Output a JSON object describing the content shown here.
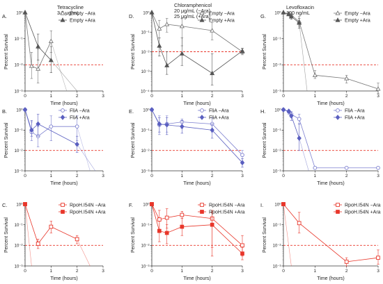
{
  "figure": {
    "y_axis_title": "Percent Survival",
    "x_axis_title": "Time (hours)",
    "threshold_color": "#e8362a",
    "colors": {
      "empty": "#777777",
      "flia": "#7c7fcf",
      "rpoh": "#e8362a"
    }
  },
  "column_headers": [
    {
      "lines": [
        "Tetracycline",
        "3.5 μg/mL"
      ]
    },
    {
      "lines": [
        "Chloramphenicol",
        "20 μg/mL (−Ara)",
        "25 μg/mL (+Ara)"
      ]
    },
    {
      "lines": [
        "Levofloxacin",
        "100 ng/mL"
      ]
    }
  ],
  "chart_data": [
    {
      "panel": "A.",
      "type": "line",
      "log_y": true,
      "xlim": [
        0,
        3
      ],
      "xticks": [
        "0",
        "1",
        "2",
        "3"
      ],
      "ylim": [
        -3,
        0
      ],
      "yticks": [
        "10⁰",
        "10⁻¹",
        "10⁻²",
        "10⁻³"
      ],
      "threshold": 0.01,
      "legend": "top-right",
      "series": [
        {
          "name": "Empty −Ara",
          "marker": "triangle-open",
          "color": "#777777",
          "x": [
            0,
            0.25,
            0.5,
            1
          ],
          "y": [
            1.0,
            0.009,
            0.007,
            0.08
          ],
          "err_hi": [
            1.0,
            0.03,
            0.04,
            0.2
          ],
          "err_lo": [
            1.0,
            0.003,
            0.002,
            0.03
          ],
          "tail_to": [
            1.6,
            -3
          ]
        },
        {
          "name": "Empty +Ara",
          "marker": "triangle",
          "color": "#555555",
          "x": [
            0,
            0.5,
            1
          ],
          "y": [
            1.0,
            0.05,
            0.015
          ],
          "err_hi": [
            1.0,
            0.15,
            0.05
          ],
          "err_lo": [
            1.0,
            0.015,
            0.005
          ],
          "tail_to": [
            2.0,
            -3
          ]
        }
      ]
    },
    {
      "panel": "D.",
      "type": "line",
      "log_y": true,
      "xlim": [
        0,
        3
      ],
      "xticks": [
        "0",
        "1",
        "2",
        "3"
      ],
      "ylim": [
        -4,
        0
      ],
      "yticks": [
        "10⁰",
        "10⁻¹",
        "10⁻²",
        "10⁻³",
        "10⁻⁴"
      ],
      "threshold": 0.01,
      "legend": "top-right",
      "series": [
        {
          "name": "Empty −Ara",
          "marker": "triangle-open",
          "color": "#777777",
          "x": [
            0,
            0.25,
            0.5,
            1,
            2,
            3
          ],
          "y": [
            1.0,
            0.15,
            0.25,
            0.2,
            0.12,
            0.01
          ],
          "err_hi": [
            1.0,
            0.4,
            0.5,
            0.5,
            0.3,
            0.015
          ],
          "err_lo": [
            1.0,
            0.05,
            0.1,
            0.02,
            0.04,
            0.007
          ]
        },
        {
          "name": "Empty +Ara",
          "marker": "triangle",
          "color": "#555555",
          "x": [
            0,
            0.25,
            0.5,
            1,
            2,
            3
          ],
          "y": [
            1.0,
            0.02,
            0.002,
            0.008,
            0.0008,
            0.011
          ],
          "err_hi": [
            1.0,
            0.05,
            0.01,
            0.05,
            0.008,
            0.015
          ],
          "err_lo": [
            1.0,
            0.006,
            0.0007,
            0.002,
            0.0002,
            0.008
          ]
        }
      ]
    },
    {
      "panel": "G.",
      "type": "line",
      "log_y": true,
      "xlim": [
        0,
        3
      ],
      "xticks": [
        "0",
        "1",
        "2",
        "3"
      ],
      "ylim": [
        -3,
        0
      ],
      "yticks": [
        "10⁰",
        "10⁻¹",
        "10⁻²",
        "10⁻³"
      ],
      "threshold": 0.01,
      "legend": "top-right",
      "series": [
        {
          "name": "Empty −Ara",
          "marker": "triangle-open",
          "color": "#777777",
          "x": [
            0,
            0.17,
            0.25,
            0.5,
            1,
            2,
            3
          ],
          "y": [
            1.0,
            0.9,
            0.8,
            0.45,
            0.004,
            0.003,
            0.0012
          ],
          "err_hi": [
            1.0,
            1.0,
            0.95,
            0.7,
            0.006,
            0.004,
            0.002
          ],
          "err_lo": [
            1.0,
            0.8,
            0.65,
            0.3,
            0.003,
            0.002,
            0.0008
          ]
        },
        {
          "name": "Empty +Ara",
          "marker": "triangle",
          "color": "#555555",
          "x": [
            0,
            0.17,
            0.25,
            0.5
          ],
          "y": [
            1.0,
            0.85,
            0.7,
            0.4
          ],
          "err_hi": [
            1.0,
            0.95,
            0.85,
            0.6
          ],
          "err_lo": [
            1.0,
            0.75,
            0.55,
            0.25
          ],
          "tail_to": [
            0.75,
            -3
          ]
        }
      ]
    },
    {
      "panel": "B.",
      "type": "line",
      "log_y": true,
      "xlim": [
        0,
        3
      ],
      "xticks": [
        "0",
        "1",
        "2",
        "3"
      ],
      "ylim": [
        -3,
        0
      ],
      "yticks": [
        "10⁰",
        "10⁻¹",
        "10⁻²",
        "10⁻³"
      ],
      "threshold": 0.01,
      "legend": "top-right",
      "series": [
        {
          "name": "FliA −Ara",
          "marker": "circle-open",
          "color": "#7c7fcf",
          "x": [
            0,
            0.25,
            0.5,
            1,
            2
          ],
          "y": [
            1.0,
            0.08,
            0.05,
            0.15,
            0.15
          ],
          "err_hi": [
            1.0,
            0.25,
            0.15,
            0.5,
            0.5
          ],
          "err_lo": [
            1.0,
            0.03,
            0.015,
            0.03,
            0.03
          ],
          "tail_to": [
            2.5,
            -3
          ]
        },
        {
          "name": "FliA +Ara",
          "marker": "diamond",
          "color": "#5a5fc0",
          "x": [
            0,
            0.25,
            0.5,
            2
          ],
          "y": [
            1.0,
            0.1,
            0.2,
            0.02
          ],
          "err_hi": [
            1.0,
            0.3,
            0.6,
            0.05
          ],
          "err_lo": [
            1.0,
            0.05,
            0.05,
            0.008
          ],
          "tail_to": [
            2.7,
            -3
          ]
        }
      ]
    },
    {
      "panel": "E.",
      "type": "line",
      "log_y": true,
      "xlim": [
        0,
        3
      ],
      "xticks": [
        "0",
        "1",
        "2",
        "3"
      ],
      "ylim": [
        -3,
        0
      ],
      "yticks": [
        "10⁰",
        "10⁻¹",
        "10⁻²",
        "10⁻³"
      ],
      "threshold": 0.01,
      "legend": "top-right",
      "series": [
        {
          "name": "FliA −Ara",
          "marker": "circle-open",
          "color": "#7c7fcf",
          "x": [
            0,
            0.25,
            0.5,
            1,
            2,
            3
          ],
          "y": [
            1.0,
            0.18,
            0.2,
            0.25,
            0.2,
            0.006
          ],
          "err_hi": [
            1.0,
            0.5,
            0.5,
            0.35,
            0.4,
            0.01
          ],
          "err_lo": [
            1.0,
            0.06,
            0.08,
            0.12,
            0.08,
            0.003
          ]
        },
        {
          "name": "FliA +Ara",
          "marker": "diamond",
          "color": "#5a5fc0",
          "x": [
            0,
            0.25,
            0.5,
            1,
            2,
            3
          ],
          "y": [
            1.0,
            0.2,
            0.18,
            0.15,
            0.1,
            0.0025
          ],
          "err_hi": [
            1.0,
            0.4,
            0.4,
            0.3,
            0.2,
            0.004
          ],
          "err_lo": [
            1.0,
            0.08,
            0.06,
            0.07,
            0.04,
            0.0015
          ]
        }
      ]
    },
    {
      "panel": "H.",
      "type": "line",
      "log_y": true,
      "xlim": [
        0,
        3
      ],
      "xticks": [
        "0",
        "1",
        "2",
        "3"
      ],
      "ylim": [
        -3,
        0
      ],
      "yticks": [
        "10⁰",
        "10⁻¹",
        "10⁻²",
        "10⁻³"
      ],
      "threshold": 0.01,
      "legend": "top-right",
      "series": [
        {
          "name": "FliA −Ara",
          "marker": "circle-open",
          "color": "#7c7fcf",
          "x": [
            0,
            0.17,
            0.25,
            0.5,
            1,
            2,
            3
          ],
          "y": [
            1.0,
            0.8,
            0.6,
            0.35,
            0.0014,
            0.0014,
            0.0014
          ],
          "err_hi": [
            1.0,
            0.95,
            0.8,
            0.6,
            0.0014,
            0.0014,
            0.0014
          ],
          "err_lo": [
            1.0,
            0.6,
            0.4,
            0.2,
            0.0014,
            0.0014,
            0.0014
          ]
        },
        {
          "name": "FliA +Ara",
          "marker": "diamond",
          "color": "#5a5fc0",
          "x": [
            0,
            0.17,
            0.25,
            0.5
          ],
          "y": [
            1.0,
            0.85,
            0.5,
            0.04
          ],
          "err_hi": [
            1.0,
            0.95,
            0.8,
            0.2
          ],
          "err_lo": [
            1.0,
            0.7,
            0.3,
            0.01
          ],
          "tail_to": [
            0.8,
            -3
          ]
        }
      ]
    },
    {
      "panel": "C.",
      "type": "line",
      "log_y": true,
      "xlim": [
        0,
        3
      ],
      "xticks": [
        "0",
        "1",
        "2",
        "3"
      ],
      "ylim": [
        -3,
        0
      ],
      "yticks": [
        "10⁰",
        "10⁻¹",
        "10⁻²",
        "10⁻³"
      ],
      "threshold": 0.01,
      "legend": "top-right",
      "series": [
        {
          "name": "RpoH.I54N −Ara",
          "marker": "square-open",
          "color": "#e8362a",
          "x": [
            0,
            0.5,
            1,
            2
          ],
          "y": [
            1.0,
            0.012,
            0.08,
            0.02
          ],
          "err_hi": [
            1.0,
            0.02,
            0.15,
            0.03
          ],
          "err_lo": [
            1.0,
            0.007,
            0.04,
            0.012
          ],
          "tail_to": [
            2.5,
            -3
          ]
        },
        {
          "name": "RpoH.I54N +Ara",
          "marker": "square",
          "color": "#e8362a",
          "x": [
            0
          ],
          "y": [
            1.0
          ],
          "err_hi": [
            1.0
          ],
          "err_lo": [
            1.0
          ],
          "tail_to": [
            0.25,
            -3
          ]
        }
      ]
    },
    {
      "panel": "F.",
      "type": "line",
      "log_y": true,
      "xlim": [
        0,
        3
      ],
      "xticks": [
        "0",
        "1",
        "2",
        "3"
      ],
      "ylim": [
        -3,
        0
      ],
      "yticks": [
        "10⁰",
        "10⁻¹",
        "10⁻²",
        "10⁻³"
      ],
      "threshold": 0.01,
      "legend": "top-right",
      "series": [
        {
          "name": "RpoH.I54N −Ara",
          "marker": "square-open",
          "color": "#e8362a",
          "x": [
            0,
            0.25,
            0.5,
            1,
            2,
            3
          ],
          "y": [
            1.0,
            0.18,
            0.22,
            0.3,
            0.2,
            0.01
          ],
          "err_hi": [
            1.0,
            0.5,
            0.6,
            0.45,
            0.5,
            0.03
          ],
          "err_lo": [
            1.0,
            0.06,
            0.07,
            0.2,
            0.003,
            0.003
          ]
        },
        {
          "name": "RpoH.I54N +Ara",
          "marker": "square",
          "color": "#e8362a",
          "x": [
            0,
            0.25,
            0.5,
            1,
            2,
            3
          ],
          "y": [
            1.0,
            0.05,
            0.04,
            0.08,
            0.1,
            0.004
          ],
          "err_hi": [
            1.0,
            0.15,
            0.1,
            0.2,
            0.4,
            0.008
          ],
          "err_lo": [
            1.0,
            0.015,
            0.012,
            0.03,
            0.008,
            0.002
          ]
        }
      ]
    },
    {
      "panel": "I.",
      "type": "line",
      "log_y": true,
      "xlim": [
        0,
        3
      ],
      "xticks": [
        "0",
        "1",
        "2",
        "3"
      ],
      "ylim": [
        -3,
        0
      ],
      "yticks": [
        "10⁰",
        "10⁻¹",
        "10⁻²",
        "10⁻³"
      ],
      "threshold": 0.01,
      "legend": "top-right",
      "series": [
        {
          "name": "RpoH.I54N −Ara",
          "marker": "square-open",
          "color": "#e8362a",
          "x": [
            0,
            0.5,
            2,
            3
          ],
          "y": [
            1.0,
            0.12,
            0.0016,
            0.0025
          ],
          "err_hi": [
            1.0,
            0.4,
            0.0025,
            0.006
          ],
          "err_lo": [
            1.0,
            0.04,
            0.001,
            0.0012
          ]
        },
        {
          "name": "RpoH.I54N +Ara",
          "marker": "square",
          "color": "#e8362a",
          "x": [
            0
          ],
          "y": [
            1.0
          ],
          "err_hi": [
            1.0
          ],
          "err_lo": [
            1.0
          ],
          "tail_to": [
            0.25,
            -3
          ]
        }
      ]
    }
  ]
}
